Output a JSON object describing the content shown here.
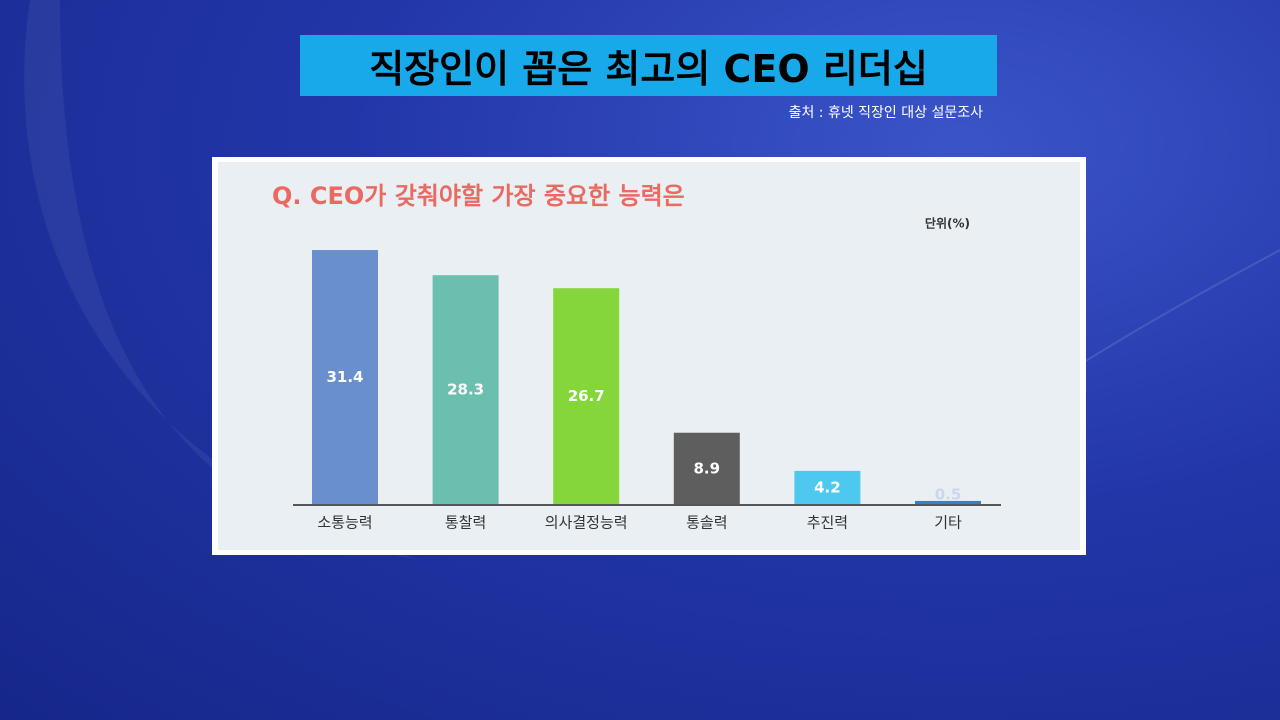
{
  "slide": {
    "title": "직장인이 꼽은 최고의 CEO 리더십",
    "source": "출처 : 휴넷 직장인 대상 설문조사"
  },
  "chart_data": {
    "type": "bar",
    "title": "Q. CEO가 갖춰야할 가장 중요한 능력은",
    "unit": "단위(%)",
    "categories": [
      "소통능력",
      "통찰력",
      "의사결정능력",
      "통솔력",
      "추진력",
      "기타"
    ],
    "values": [
      31.4,
      28.3,
      26.7,
      8.9,
      4.2,
      0.5
    ],
    "colors": [
      "#6a8fcf",
      "#6bbfae",
      "#84d63a",
      "#5e5e5e",
      "#4fc8f0",
      "#3a7fc0"
    ]
  }
}
